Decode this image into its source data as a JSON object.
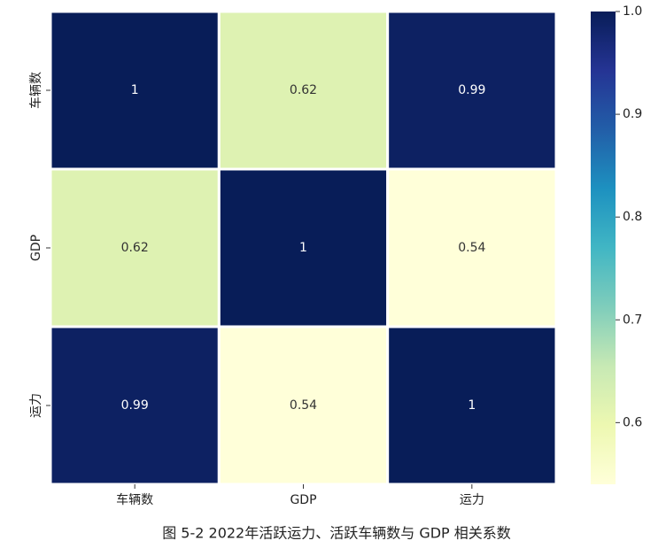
{
  "chart_data": {
    "type": "heatmap",
    "caption": "图 5-2 2022年活跃运力、活跃车辆数与 GDP 相关系数",
    "x_categories": [
      "车辆数",
      "GDP",
      "运力"
    ],
    "y_categories": [
      "车辆数",
      "GDP",
      "运力"
    ],
    "values": [
      [
        1,
        0.62,
        0.99
      ],
      [
        0.62,
        1,
        0.54
      ],
      [
        0.99,
        0.54,
        1
      ]
    ],
    "colormap": "YlGnBu",
    "clim": [
      0.54,
      1
    ],
    "cticks": [
      0.6,
      0.7,
      0.8,
      0.9,
      {
        "value": 1,
        "label": "1.0"
      }
    ]
  }
}
